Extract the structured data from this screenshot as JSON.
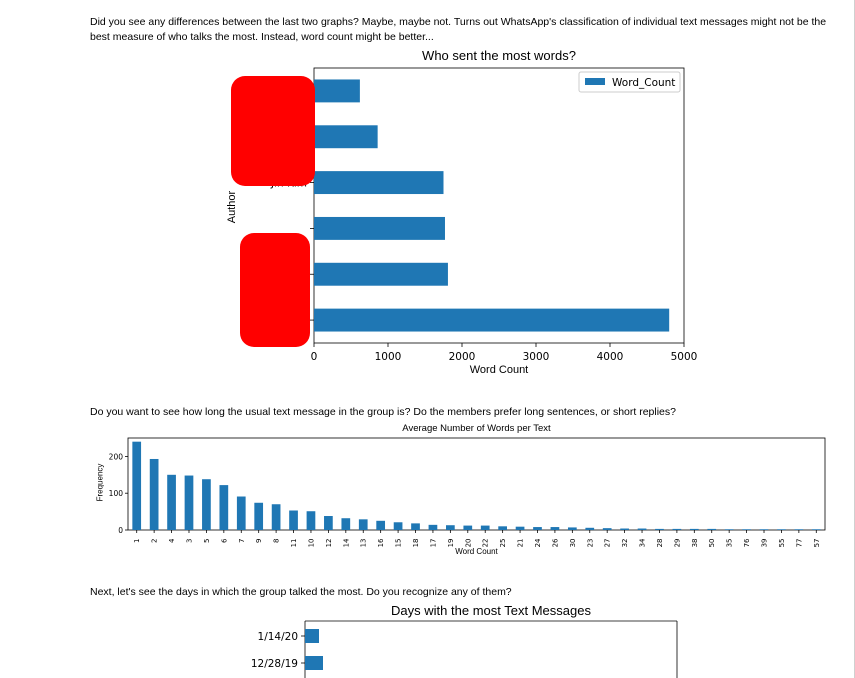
{
  "intro1": "Did you see any differences between the last two graphs? Maybe, maybe not. Turns out WhatsApp's classification of individual text messages might not be the best measure of who talks the most. Instead, word count might be better...",
  "intro2": "Do you want to see how long the usual text message in the group is? Do the members prefer long sentences, or short replies?",
  "intro3": "Next, let's see the days in which the group talked the most. Do you recognize any of them?",
  "accent": "#1f77b4",
  "redaction_color": "#ff0000",
  "chart_data": [
    {
      "type": "bar",
      "orientation": "horizontal",
      "title": "Who sent the most words?",
      "xlabel": "Word Count",
      "ylabel": "Author",
      "legend": "Word_Count",
      "legend_position": "top-right",
      "categories": [
        "",
        "",
        "",
        "Jin Kim",
        "",
        ""
      ],
      "values": [
        4800,
        1810,
        1770,
        1750,
        860,
        620
      ],
      "xlim": [
        0,
        5000
      ],
      "xticks": [
        0,
        1000,
        2000,
        3000,
        4000,
        5000
      ],
      "redacted_labels": true
    },
    {
      "type": "bar",
      "title": "Average Number of Words per Text",
      "xlabel": "Word Count",
      "ylabel": "Frequency",
      "categories": [
        "1",
        "2",
        "4",
        "3",
        "5",
        "6",
        "7",
        "9",
        "8",
        "11",
        "10",
        "12",
        "14",
        "13",
        "16",
        "15",
        "18",
        "17",
        "19",
        "20",
        "22",
        "25",
        "21",
        "24",
        "26",
        "30",
        "23",
        "27",
        "32",
        "34",
        "28",
        "29",
        "38",
        "50",
        "35",
        "76",
        "39",
        "55",
        "77",
        "57"
      ],
      "values": [
        240,
        193,
        150,
        148,
        138,
        122,
        91,
        74,
        70,
        53,
        51,
        38,
        32,
        29,
        25,
        21,
        18,
        14,
        13,
        12,
        12,
        10,
        9,
        8,
        8,
        7,
        6,
        5,
        4,
        4,
        3,
        3,
        3,
        3,
        2,
        2,
        2,
        2,
        2,
        2
      ],
      "ylim": [
        0,
        250
      ],
      "yticks": [
        0,
        100,
        200
      ]
    },
    {
      "type": "bar",
      "orientation": "horizontal",
      "title": "Days with the most Text Messages",
      "categories": [
        "1/14/20",
        "12/28/19"
      ],
      "values": [
        14,
        18
      ],
      "partially_visible": true
    }
  ]
}
